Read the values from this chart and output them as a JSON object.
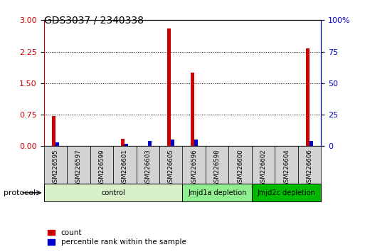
{
  "title": "GDS3037 / 2340338",
  "samples": [
    "GSM226595",
    "GSM226597",
    "GSM226599",
    "GSM226601",
    "GSM226603",
    "GSM226605",
    "GSM226596",
    "GSM226598",
    "GSM226600",
    "GSM226602",
    "GSM226604",
    "GSM226606"
  ],
  "count_values": [
    0.72,
    0.0,
    0.0,
    0.18,
    0.0,
    2.8,
    1.75,
    0.0,
    0.0,
    0.0,
    0.0,
    2.32
  ],
  "percentile_values": [
    3,
    0,
    0,
    2,
    4,
    5,
    5,
    0,
    0,
    0,
    0,
    4
  ],
  "groups": [
    {
      "label": "control",
      "start": 0,
      "end": 6,
      "color": "#d8f0c8"
    },
    {
      "label": "Jmjd1a depletion",
      "start": 6,
      "end": 9,
      "color": "#90ee90"
    },
    {
      "label": "Jmjd2c depletion",
      "start": 9,
      "end": 12,
      "color": "#00bb00"
    }
  ],
  "ylim_left": [
    0,
    3
  ],
  "ylim_right": [
    0,
    100
  ],
  "yticks_left": [
    0,
    0.75,
    1.5,
    2.25,
    3
  ],
  "yticks_right": [
    0,
    25,
    50,
    75,
    100
  ],
  "count_color": "#cc0000",
  "percentile_color": "#0000cc",
  "bar_width": 0.3,
  "bg_color": "#ffffff",
  "sample_box_color": "#d3d3d3",
  "legend_count_label": "count",
  "legend_percentile_label": "percentile rank within the sample",
  "protocol_label": "protocol"
}
